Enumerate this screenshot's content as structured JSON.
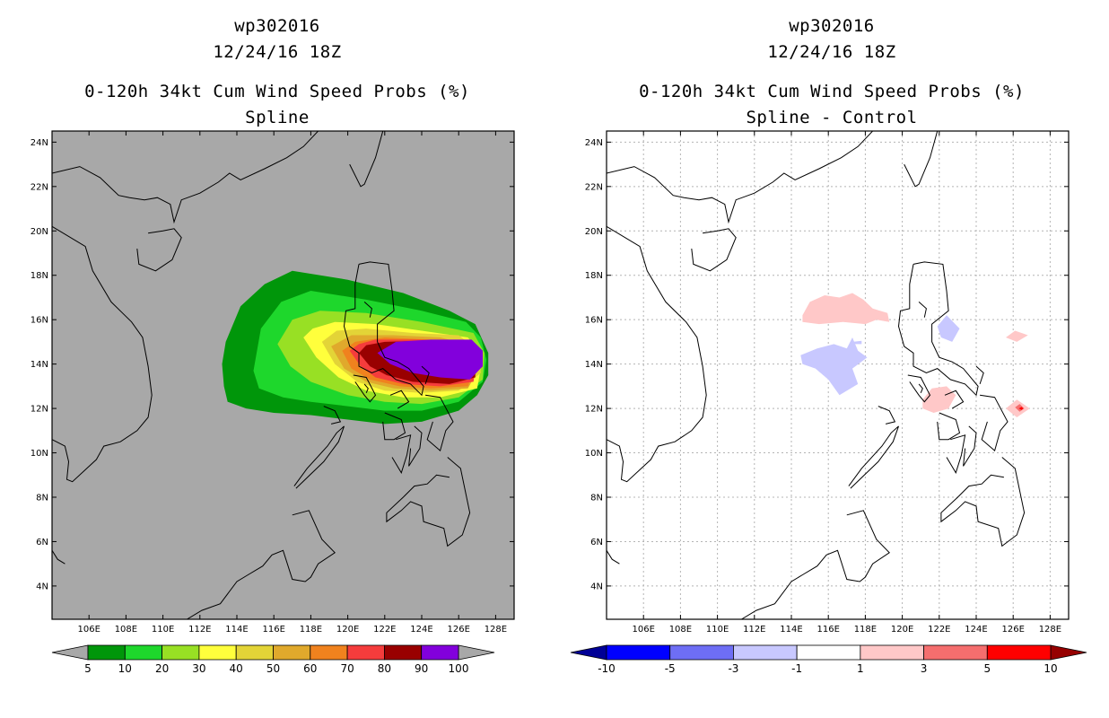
{
  "panels": [
    {
      "id": "spline",
      "storm_id": "wp302016",
      "datetime": "12/24/16 18Z",
      "product": "0-120h 34kt Cum Wind Speed Probs (%)",
      "subtitle": "Spline",
      "map_background": "#a8a8a8",
      "colorbar": {
        "colors": [
          "#00960a",
          "#1ed72c",
          "#98e024",
          "#ffff3c",
          "#e3d437",
          "#e0a92c",
          "#f0821e",
          "#f53c3c",
          "#990000",
          "#8200dc"
        ],
        "labels": [
          "5",
          "10",
          "20",
          "30",
          "40",
          "50",
          "60",
          "70",
          "80",
          "90",
          "100"
        ],
        "under_color": "#a8a8a8",
        "over_color": "#a8a8a8"
      }
    },
    {
      "id": "difference",
      "storm_id": "wp302016",
      "datetime": "12/24/16 18Z",
      "product": "0-120h 34kt Cum Wind Speed Probs (%)",
      "subtitle": "Spline - Control",
      "map_background": "#ffffff",
      "colorbar": {
        "colors": [
          "#0000ff",
          "#6e6ef5",
          "#c8c8ff",
          "#ffffff",
          "#ffc8c8",
          "#f56e6e",
          "#ff0000"
        ],
        "labels": [
          "-10",
          "-5",
          "-3",
          "-1",
          "1",
          "3",
          "5",
          "10"
        ],
        "under_color": "#000096",
        "over_color": "#960000"
      }
    }
  ],
  "map": {
    "lon_min": 104,
    "lon_max": 129,
    "lat_min": 2.5,
    "lat_max": 24.5,
    "lon_ticks": [
      106,
      108,
      110,
      112,
      114,
      116,
      118,
      120,
      122,
      124,
      126,
      128
    ],
    "lat_ticks": [
      4,
      6,
      8,
      10,
      12,
      14,
      16,
      18,
      20,
      22,
      24
    ],
    "lon_labels": [
      "106E",
      "108E",
      "110E",
      "112E",
      "114E",
      "116E",
      "118E",
      "120E",
      "122E",
      "124E",
      "126E",
      "128E"
    ],
    "lat_labels": [
      "4N",
      "6N",
      "8N",
      "10N",
      "12N",
      "14N",
      "16N",
      "18N",
      "20N",
      "22N",
      "24N"
    ]
  },
  "probability_field": [
    {
      "level": "5",
      "color": "#00960a",
      "points": [
        [
          113.3,
          13.0
        ],
        [
          113.5,
          12.3
        ],
        [
          114.5,
          12.0
        ],
        [
          116,
          11.8
        ],
        [
          118,
          11.7
        ],
        [
          120,
          11.5
        ],
        [
          122,
          11.3
        ],
        [
          124,
          11.4
        ],
        [
          126,
          11.9
        ],
        [
          127,
          12.6
        ],
        [
          127.6,
          13.5
        ],
        [
          127.6,
          14.5
        ],
        [
          126.9,
          15.8
        ],
        [
          125.5,
          16.4
        ],
        [
          123,
          17.2
        ],
        [
          120,
          17.8
        ],
        [
          117,
          18.2
        ],
        [
          115.5,
          17.6
        ],
        [
          114.2,
          16.6
        ],
        [
          113.4,
          15
        ],
        [
          113.2,
          14
        ]
      ]
    },
    {
      "level": "10",
      "color": "#1ed72c",
      "points": [
        [
          114.9,
          13.7
        ],
        [
          115.2,
          12.9
        ],
        [
          116.5,
          12.5
        ],
        [
          118,
          12.3
        ],
        [
          120,
          12.1
        ],
        [
          122,
          11.9
        ],
        [
          124,
          11.9
        ],
        [
          126,
          12.3
        ],
        [
          127.3,
          13.2
        ],
        [
          127.5,
          14.2
        ],
        [
          127.2,
          15.2
        ],
        [
          126.4,
          15.9
        ],
        [
          124,
          16.4
        ],
        [
          121,
          16.9
        ],
        [
          118,
          17.3
        ],
        [
          116.4,
          16.8
        ],
        [
          115.3,
          15.6
        ]
      ]
    },
    {
      "level": "20",
      "color": "#98e024",
      "points": [
        [
          116.2,
          14.9
        ],
        [
          116.9,
          13.9
        ],
        [
          118,
          13.2
        ],
        [
          120,
          12.6
        ],
        [
          122,
          12.3
        ],
        [
          124,
          12.2
        ],
        [
          126,
          12.5
        ],
        [
          127.3,
          13.3
        ],
        [
          127.4,
          14.5
        ],
        [
          126.8,
          15.4
        ],
        [
          124,
          15.9
        ],
        [
          121,
          16.3
        ],
        [
          118.5,
          16.4
        ],
        [
          117,
          16.0
        ]
      ]
    },
    {
      "level": "30",
      "color": "#ffff3c",
      "points": [
        [
          117.6,
          15.2
        ],
        [
          118.3,
          14.3
        ],
        [
          119.5,
          13.4
        ],
        [
          121,
          12.8
        ],
        [
          123,
          12.5
        ],
        [
          125,
          12.5
        ],
        [
          127,
          12.9
        ],
        [
          127.3,
          14.3
        ],
        [
          126.5,
          15.2
        ],
        [
          124,
          15.5
        ],
        [
          121.5,
          15.8
        ],
        [
          119.3,
          15.9
        ],
        [
          118.1,
          15.6
        ]
      ]
    },
    {
      "level": "40",
      "color": "#e3d437",
      "points": [
        [
          118.6,
          15.0
        ],
        [
          119.3,
          14.0
        ],
        [
          120.5,
          13.2
        ],
        [
          122,
          12.8
        ],
        [
          124,
          12.7
        ],
        [
          126,
          12.8
        ],
        [
          127.2,
          13.6
        ],
        [
          127.1,
          14.6
        ],
        [
          126,
          15.3
        ],
        [
          123.5,
          15.4
        ],
        [
          121,
          15.6
        ],
        [
          119.4,
          15.5
        ]
      ]
    },
    {
      "level": "50",
      "color": "#e0a92c",
      "points": [
        [
          119.1,
          14.8
        ],
        [
          119.8,
          13.8
        ],
        [
          121,
          13.2
        ],
        [
          122.5,
          12.9
        ],
        [
          124.5,
          12.8
        ],
        [
          126.5,
          12.9
        ],
        [
          127.1,
          13.8
        ],
        [
          126.9,
          14.8
        ],
        [
          125,
          15.2
        ],
        [
          122.5,
          15.3
        ],
        [
          120.2,
          15.3
        ]
      ]
    },
    {
      "level": "60",
      "color": "#f0821e",
      "points": [
        [
          119.7,
          14.6
        ],
        [
          120.2,
          13.8
        ],
        [
          121.2,
          13.3
        ],
        [
          122.8,
          13.0
        ],
        [
          124.5,
          12.9
        ],
        [
          126.5,
          13.0
        ],
        [
          127.0,
          14.0
        ],
        [
          126.8,
          14.9
        ],
        [
          124.5,
          15.1
        ],
        [
          122,
          15.2
        ],
        [
          120.4,
          15.0
        ]
      ]
    },
    {
      "level": "70",
      "color": "#f53c3c",
      "points": [
        [
          120.1,
          14.6
        ],
        [
          120.7,
          13.9
        ],
        [
          121.5,
          13.4
        ],
        [
          123,
          13.1
        ],
        [
          125,
          13.0
        ],
        [
          126.8,
          13.2
        ],
        [
          127.0,
          14.3
        ],
        [
          126.5,
          15.0
        ],
        [
          124,
          15.1
        ],
        [
          121.5,
          15.1
        ],
        [
          120.6,
          14.9
        ]
      ]
    },
    {
      "level": "80",
      "color": "#990000",
      "points": [
        [
          120.6,
          14.5
        ],
        [
          121.2,
          13.9
        ],
        [
          122.1,
          13.5
        ],
        [
          123.5,
          13.2
        ],
        [
          125.5,
          13.1
        ],
        [
          126.9,
          13.4
        ],
        [
          126.9,
          14.5
        ],
        [
          126.3,
          15.0
        ],
        [
          124,
          15.05
        ],
        [
          122,
          15.0
        ],
        [
          121.0,
          14.85
        ]
      ]
    },
    {
      "level": "90",
      "color": "#8200dc",
      "points": [
        [
          121.6,
          14.5
        ],
        [
          122.3,
          14.0
        ],
        [
          123.5,
          13.6
        ],
        [
          125,
          13.4
        ],
        [
          126.6,
          13.3
        ],
        [
          127.3,
          13.9
        ],
        [
          127.3,
          14.6
        ],
        [
          126.7,
          15.1
        ],
        [
          124.5,
          15.1
        ],
        [
          122.6,
          15.0
        ]
      ]
    }
  ],
  "difference_field": [
    {
      "level": "1",
      "color": "#ffc8c8",
      "points": [
        [
          114.6,
          16.2
        ],
        [
          115.0,
          16.8
        ],
        [
          115.8,
          17.1
        ],
        [
          116.6,
          17.0
        ],
        [
          117.3,
          17.2
        ],
        [
          117.9,
          16.9
        ],
        [
          118.4,
          16.5
        ],
        [
          119.2,
          16.3
        ],
        [
          119.3,
          15.9
        ],
        [
          118.6,
          16.0
        ],
        [
          118.0,
          15.8
        ],
        [
          116.8,
          15.9
        ],
        [
          115.5,
          15.8
        ],
        [
          114.6,
          15.9
        ]
      ]
    },
    {
      "level": "-1",
      "color": "#c8c8ff",
      "points": [
        [
          114.5,
          14.4
        ],
        [
          115.4,
          14.7
        ],
        [
          116.3,
          14.9
        ],
        [
          117.0,
          14.7
        ],
        [
          117.3,
          15.2
        ],
        [
          117.6,
          14.6
        ],
        [
          118.1,
          14.3
        ],
        [
          117.3,
          13.8
        ],
        [
          117.6,
          13.1
        ],
        [
          116.6,
          12.6
        ],
        [
          116.0,
          13.3
        ],
        [
          115.3,
          13.8
        ],
        [
          114.6,
          14.0
        ]
      ]
    },
    {
      "level": "-1",
      "color": "#c8c8ff",
      "points": [
        [
          117.3,
          15.0
        ],
        [
          117.8,
          15.05
        ],
        [
          117.8,
          14.9
        ],
        [
          117.3,
          14.9
        ]
      ]
    },
    {
      "level": "-1",
      "color": "#c8c8ff",
      "points": [
        [
          121.9,
          15.7
        ],
        [
          122.4,
          16.2
        ],
        [
          123.1,
          15.6
        ],
        [
          122.7,
          15.0
        ],
        [
          122.1,
          15.2
        ]
      ]
    },
    {
      "level": "1",
      "color": "#ffc8c8",
      "points": [
        [
          121.1,
          12.4
        ],
        [
          121.6,
          12.9
        ],
        [
          122.4,
          13.0
        ],
        [
          122.9,
          12.6
        ],
        [
          122.5,
          12.0
        ],
        [
          121.7,
          11.8
        ],
        [
          121.1,
          12.0
        ]
      ]
    },
    {
      "level": "1",
      "color": "#ffc8c8",
      "points": [
        [
          125.6,
          15.2
        ],
        [
          126.1,
          15.5
        ],
        [
          126.8,
          15.3
        ],
        [
          126.2,
          15.0
        ]
      ]
    },
    {
      "level": "1",
      "color": "#ffc8c8",
      "points": [
        [
          125.6,
          12.0
        ],
        [
          126.2,
          12.4
        ],
        [
          126.9,
          12.0
        ],
        [
          126.2,
          11.6
        ]
      ]
    },
    {
      "level": "3",
      "color": "#f56e6e",
      "points": [
        [
          126.1,
          12.05
        ],
        [
          126.35,
          12.2
        ],
        [
          126.6,
          12.0
        ],
        [
          126.35,
          11.85
        ]
      ]
    },
    {
      "level": "5",
      "color": "#ff0000",
      "points": [
        [
          126.3,
          12.0
        ],
        [
          126.45,
          12.07
        ],
        [
          126.55,
          12.0
        ],
        [
          126.45,
          11.93
        ]
      ]
    }
  ]
}
